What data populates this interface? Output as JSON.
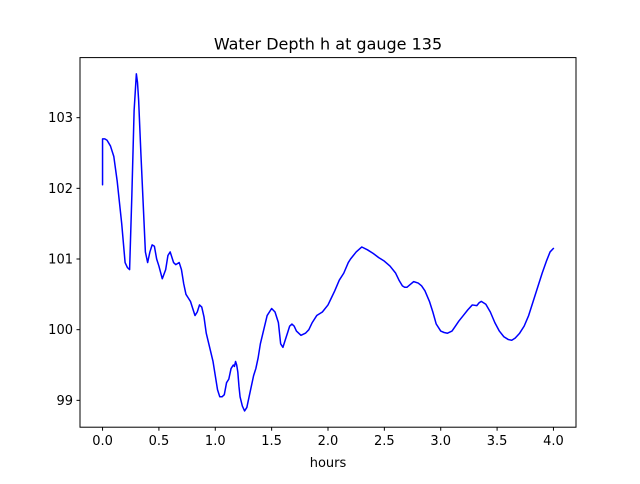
{
  "chart_data": {
    "type": "line",
    "title": "Water Depth h at gauge 135",
    "xlabel": "hours",
    "ylabel": "",
    "xlim": [
      -0.2,
      4.2
    ],
    "ylim": [
      98.62,
      103.85
    ],
    "xticks": [
      0.0,
      0.5,
      1.0,
      1.5,
      2.0,
      2.5,
      3.0,
      3.5,
      4.0
    ],
    "xtick_labels": [
      "0.0",
      "0.5",
      "1.0",
      "1.5",
      "2.0",
      "2.5",
      "3.0",
      "3.5",
      "4.0"
    ],
    "yticks": [
      99,
      100,
      101,
      102,
      103
    ],
    "ytick_labels": [
      "99",
      "100",
      "101",
      "102",
      "103"
    ],
    "grid": false,
    "legend": "none",
    "series": [
      {
        "color": "#0000ff",
        "x": [
          0.0,
          0.0,
          0.02,
          0.04,
          0.07,
          0.1,
          0.13,
          0.17,
          0.2,
          0.22,
          0.24,
          0.26,
          0.28,
          0.3,
          0.31,
          0.32,
          0.34,
          0.36,
          0.38,
          0.4,
          0.42,
          0.44,
          0.46,
          0.48,
          0.5,
          0.53,
          0.56,
          0.58,
          0.6,
          0.63,
          0.65,
          0.68,
          0.7,
          0.72,
          0.74,
          0.76,
          0.78,
          0.8,
          0.82,
          0.84,
          0.86,
          0.88,
          0.9,
          0.92,
          0.95,
          0.98,
          1.0,
          1.02,
          1.04,
          1.06,
          1.08,
          1.1,
          1.12,
          1.14,
          1.16,
          1.17,
          1.18,
          1.19,
          1.2,
          1.21,
          1.22,
          1.24,
          1.26,
          1.28,
          1.3,
          1.32,
          1.34,
          1.36,
          1.38,
          1.4,
          1.43,
          1.46,
          1.5,
          1.53,
          1.56,
          1.58,
          1.6,
          1.62,
          1.64,
          1.66,
          1.68,
          1.7,
          1.72,
          1.74,
          1.76,
          1.8,
          1.83,
          1.86,
          1.9,
          1.95,
          2.0,
          2.03,
          2.06,
          2.1,
          2.14,
          2.18,
          2.2,
          2.25,
          2.3,
          2.35,
          2.4,
          2.45,
          2.5,
          2.55,
          2.6,
          2.63,
          2.66,
          2.68,
          2.7,
          2.73,
          2.76,
          2.8,
          2.83,
          2.86,
          2.9,
          2.93,
          2.96,
          3.0,
          3.03,
          3.06,
          3.1,
          3.13,
          3.16,
          3.2,
          3.24,
          3.28,
          3.32,
          3.33,
          3.34,
          3.36,
          3.4,
          3.44,
          3.48,
          3.52,
          3.56,
          3.6,
          3.63,
          3.66,
          3.7,
          3.74,
          3.78,
          3.82,
          3.86,
          3.9,
          3.94,
          3.97,
          4.0
        ],
        "y": [
          102.05,
          102.7,
          102.7,
          102.68,
          102.6,
          102.45,
          102.1,
          101.5,
          100.95,
          100.88,
          100.85,
          101.9,
          103.1,
          103.62,
          103.5,
          103.25,
          102.5,
          101.8,
          101.1,
          100.95,
          101.1,
          101.2,
          101.18,
          101.0,
          100.9,
          100.72,
          100.85,
          101.05,
          101.1,
          100.95,
          100.92,
          100.95,
          100.85,
          100.65,
          100.5,
          100.45,
          100.4,
          100.3,
          100.2,
          100.25,
          100.35,
          100.32,
          100.18,
          99.95,
          99.75,
          99.55,
          99.35,
          99.15,
          99.05,
          99.05,
          99.08,
          99.25,
          99.3,
          99.45,
          99.5,
          99.48,
          99.55,
          99.5,
          99.4,
          99.2,
          99.05,
          98.92,
          98.85,
          98.9,
          99.05,
          99.2,
          99.35,
          99.45,
          99.6,
          99.8,
          100.0,
          100.2,
          100.3,
          100.25,
          100.1,
          99.8,
          99.75,
          99.85,
          99.95,
          100.05,
          100.08,
          100.05,
          99.98,
          99.95,
          99.92,
          99.95,
          100.0,
          100.1,
          100.2,
          100.25,
          100.35,
          100.45,
          100.55,
          100.7,
          100.8,
          100.95,
          101.0,
          101.1,
          101.17,
          101.13,
          101.08,
          101.02,
          100.97,
          100.9,
          100.8,
          100.7,
          100.62,
          100.6,
          100.6,
          100.64,
          100.68,
          100.66,
          100.62,
          100.55,
          100.4,
          100.25,
          100.08,
          99.98,
          99.96,
          99.95,
          99.98,
          100.05,
          100.12,
          100.2,
          100.28,
          100.35,
          100.34,
          100.36,
          100.38,
          100.4,
          100.36,
          100.25,
          100.1,
          99.98,
          99.9,
          99.86,
          99.85,
          99.88,
          99.95,
          100.05,
          100.2,
          100.4,
          100.6,
          100.8,
          100.98,
          101.1,
          101.15
        ]
      }
    ]
  }
}
